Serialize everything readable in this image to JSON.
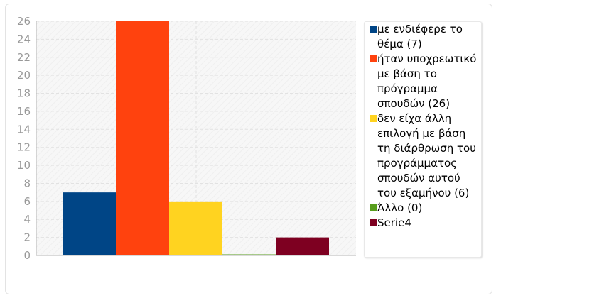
{
  "chart_data": {
    "type": "bar",
    "title": "",
    "xlabel": "",
    "ylabel": "",
    "ylim": [
      0,
      26
    ],
    "yticks": [
      0,
      2,
      4,
      6,
      8,
      10,
      12,
      14,
      16,
      18,
      20,
      22,
      24,
      26
    ],
    "grid": true,
    "legend_position": "right",
    "series": [
      {
        "name": "με ενδιέφερε το θέμα (7)",
        "value": 7,
        "color": "#004586"
      },
      {
        "name": "ήταν υποχρεωτικό με βάση το πρόγραμμα σπουδών (26)",
        "value": 26,
        "color": "#ff420e"
      },
      {
        "name": "δεν είχα άλλη επιλογή με βάση τη διάρθρωση του προγράμματος σπουδών αυτού του εξαμήνου (6)",
        "value": 6,
        "color": "#ffd320"
      },
      {
        "name": "Άλλο (0)",
        "value": 0,
        "color": "#579d1c"
      },
      {
        "name": "Serie4",
        "value": 2,
        "color": "#7e0021"
      }
    ]
  }
}
